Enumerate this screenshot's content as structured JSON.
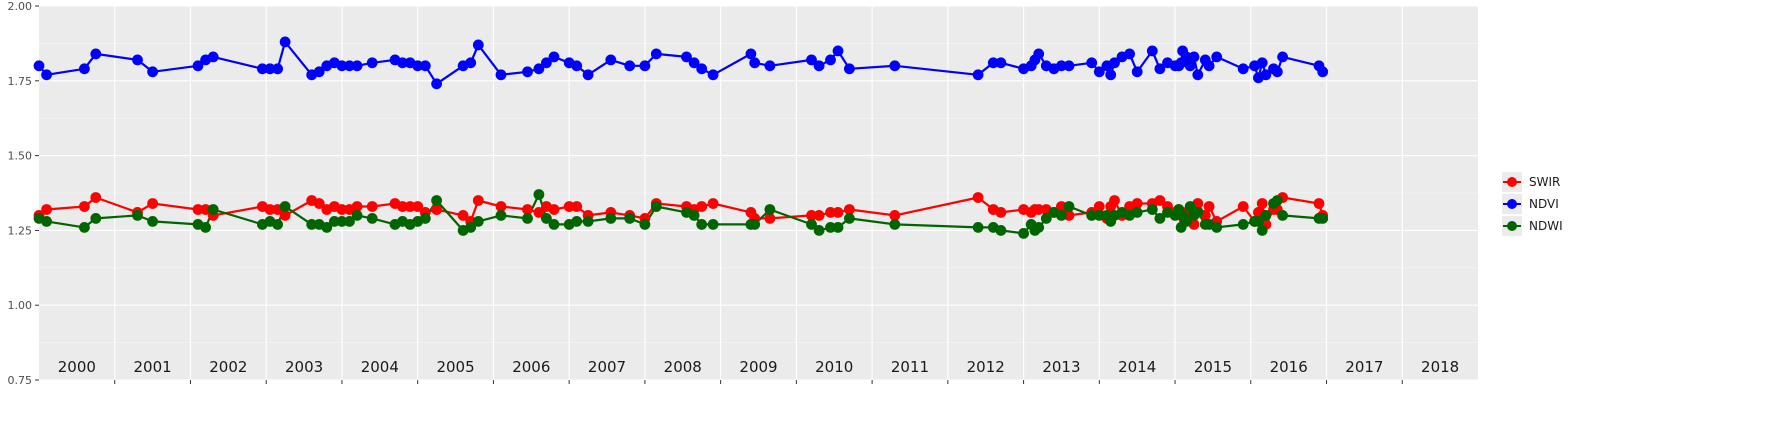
{
  "chart_data": {
    "type": "line",
    "title": "",
    "xlabel": "",
    "ylabel": "",
    "xlim": [
      2000.0,
      2019.0
    ],
    "ylim": [
      0.75,
      2.0
    ],
    "yticks": [
      "0.75",
      "1.00",
      "1.25",
      "1.50",
      "1.75",
      "2.00"
    ],
    "year_labels": [
      "2000",
      "2001",
      "2002",
      "2003",
      "2004",
      "2005",
      "2006",
      "2007",
      "2008",
      "2009",
      "2010",
      "2011",
      "2012",
      "2013",
      "2014",
      "2015",
      "2016",
      "2017",
      "2018"
    ],
    "grid": true,
    "legend_position": "right",
    "series": [
      {
        "name": "SWIR",
        "color": "#ff0000",
        "x": [
          2000.0,
          2000.1,
          2000.6,
          2000.75,
          2001.3,
          2001.5,
          2002.1,
          2002.2,
          2002.3,
          2002.95,
          2003.05,
          2003.15,
          2003.25,
          2003.6,
          2003.7,
          2003.8,
          2003.9,
          2004.0,
          2004.1,
          2004.2,
          2004.4,
          2004.7,
          2004.8,
          2004.9,
          2005.0,
          2005.1,
          2005.25,
          2005.6,
          2005.7,
          2005.8,
          2006.1,
          2006.45,
          2006.6,
          2006.7,
          2006.8,
          2007.0,
          2007.1,
          2007.25,
          2007.55,
          2007.8,
          2008.0,
          2008.15,
          2008.55,
          2008.65,
          2008.75,
          2008.9,
          2009.4,
          2009.45,
          2009.65,
          2010.2,
          2010.3,
          2010.45,
          2010.55,
          2010.7,
          2011.3,
          2012.4,
          2012.6,
          2012.7,
          2013.0,
          2013.1,
          2013.15,
          2013.2,
          2013.3,
          2013.4,
          2013.5,
          2013.6,
          2013.9,
          2014.0,
          2014.1,
          2014.15,
          2014.2,
          2014.3,
          2014.4,
          2014.5,
          2014.7,
          2014.8,
          2014.9,
          2015.0,
          2015.05,
          2015.08,
          2015.1,
          2015.15,
          2015.2,
          2015.25,
          2015.3,
          2015.4,
          2015.45,
          2015.55,
          2015.9,
          2016.05,
          2016.1,
          2016.15,
          2016.2,
          2016.3,
          2016.35,
          2016.42,
          2016.9,
          2016.95
        ],
        "values": [
          1.3,
          1.32,
          1.33,
          1.36,
          1.31,
          1.34,
          1.32,
          1.32,
          1.3,
          1.33,
          1.32,
          1.32,
          1.3,
          1.35,
          1.34,
          1.32,
          1.33,
          1.32,
          1.32,
          1.33,
          1.33,
          1.34,
          1.33,
          1.33,
          1.33,
          1.31,
          1.32,
          1.3,
          1.28,
          1.35,
          1.33,
          1.32,
          1.31,
          1.33,
          1.32,
          1.33,
          1.33,
          1.3,
          1.31,
          1.3,
          1.29,
          1.34,
          1.33,
          1.32,
          1.33,
          1.34,
          1.31,
          1.29,
          1.29,
          1.3,
          1.3,
          1.31,
          1.31,
          1.32,
          1.3,
          1.36,
          1.32,
          1.31,
          1.32,
          1.31,
          1.32,
          1.32,
          1.32,
          1.31,
          1.33,
          1.3,
          1.31,
          1.33,
          1.29,
          1.33,
          1.35,
          1.3,
          1.33,
          1.34,
          1.34,
          1.35,
          1.33,
          1.31,
          1.32,
          1.3,
          1.31,
          1.29,
          1.29,
          1.27,
          1.34,
          1.3,
          1.33,
          1.28,
          1.33,
          1.28,
          1.31,
          1.34,
          1.27,
          1.32,
          1.32,
          1.36,
          1.34,
          1.3
        ]
      },
      {
        "name": "NDVI",
        "color": "#0000ff",
        "x": [
          2000.0,
          2000.1,
          2000.6,
          2000.75,
          2001.3,
          2001.5,
          2002.1,
          2002.2,
          2002.3,
          2002.95,
          2003.05,
          2003.15,
          2003.25,
          2003.6,
          2003.7,
          2003.8,
          2003.9,
          2004.0,
          2004.1,
          2004.2,
          2004.4,
          2004.7,
          2004.8,
          2004.9,
          2005.0,
          2005.1,
          2005.25,
          2005.6,
          2005.7,
          2005.8,
          2006.1,
          2006.45,
          2006.6,
          2006.7,
          2006.8,
          2007.0,
          2007.1,
          2007.25,
          2007.55,
          2007.8,
          2008.0,
          2008.15,
          2008.55,
          2008.65,
          2008.75,
          2008.9,
          2009.4,
          2009.45,
          2009.65,
          2010.2,
          2010.3,
          2010.45,
          2010.55,
          2010.7,
          2011.3,
          2012.4,
          2012.6,
          2012.7,
          2013.0,
          2013.1,
          2013.15,
          2013.2,
          2013.3,
          2013.4,
          2013.5,
          2013.6,
          2013.9,
          2014.0,
          2014.1,
          2014.15,
          2014.2,
          2014.3,
          2014.4,
          2014.5,
          2014.7,
          2014.8,
          2014.9,
          2015.0,
          2015.05,
          2015.08,
          2015.1,
          2015.15,
          2015.2,
          2015.25,
          2015.3,
          2015.4,
          2015.45,
          2015.55,
          2015.9,
          2016.05,
          2016.1,
          2016.15,
          2016.2,
          2016.3,
          2016.35,
          2016.42,
          2016.9,
          2016.95
        ],
        "values": [
          1.8,
          1.77,
          1.79,
          1.84,
          1.82,
          1.78,
          1.8,
          1.82,
          1.83,
          1.79,
          1.79,
          1.79,
          1.88,
          1.77,
          1.78,
          1.8,
          1.81,
          1.8,
          1.8,
          1.8,
          1.81,
          1.82,
          1.81,
          1.81,
          1.8,
          1.8,
          1.74,
          1.8,
          1.81,
          1.87,
          1.77,
          1.78,
          1.79,
          1.81,
          1.83,
          1.81,
          1.8,
          1.77,
          1.82,
          1.8,
          1.8,
          1.84,
          1.83,
          1.81,
          1.79,
          1.77,
          1.84,
          1.81,
          1.8,
          1.82,
          1.8,
          1.82,
          1.85,
          1.79,
          1.8,
          1.77,
          1.81,
          1.81,
          1.79,
          1.8,
          1.82,
          1.84,
          1.8,
          1.79,
          1.8,
          1.8,
          1.81,
          1.78,
          1.8,
          1.77,
          1.81,
          1.83,
          1.84,
          1.78,
          1.85,
          1.79,
          1.81,
          1.8,
          1.8,
          1.81,
          1.85,
          1.83,
          1.8,
          1.83,
          1.77,
          1.82,
          1.8,
          1.83,
          1.79,
          1.8,
          1.76,
          1.81,
          1.77,
          1.79,
          1.78,
          1.83,
          1.8,
          1.78
        ]
      },
      {
        "name": "NDWI",
        "color": "#006400",
        "x": [
          2000.0,
          2000.1,
          2000.6,
          2000.75,
          2001.3,
          2001.5,
          2002.1,
          2002.2,
          2002.3,
          2002.95,
          2003.05,
          2003.15,
          2003.25,
          2003.6,
          2003.7,
          2003.8,
          2003.9,
          2004.0,
          2004.1,
          2004.2,
          2004.4,
          2004.7,
          2004.8,
          2004.9,
          2005.0,
          2005.1,
          2005.25,
          2005.6,
          2005.7,
          2005.8,
          2006.1,
          2006.45,
          2006.6,
          2006.7,
          2006.8,
          2007.0,
          2007.1,
          2007.25,
          2007.55,
          2007.8,
          2008.0,
          2008.15,
          2008.55,
          2008.65,
          2008.75,
          2008.9,
          2009.4,
          2009.45,
          2009.65,
          2010.2,
          2010.3,
          2010.45,
          2010.55,
          2010.7,
          2011.3,
          2012.4,
          2012.6,
          2012.7,
          2013.0,
          2013.1,
          2013.15,
          2013.2,
          2013.3,
          2013.4,
          2013.5,
          2013.6,
          2013.9,
          2014.0,
          2014.1,
          2014.15,
          2014.2,
          2014.3,
          2014.4,
          2014.5,
          2014.7,
          2014.8,
          2014.9,
          2015.0,
          2015.05,
          2015.08,
          2015.1,
          2015.15,
          2015.2,
          2015.25,
          2015.3,
          2015.4,
          2015.45,
          2015.55,
          2015.9,
          2016.05,
          2016.1,
          2016.15,
          2016.2,
          2016.3,
          2016.35,
          2016.42,
          2016.9,
          2016.95
        ],
        "values": [
          1.29,
          1.28,
          1.26,
          1.29,
          1.3,
          1.28,
          1.27,
          1.26,
          1.32,
          1.27,
          1.28,
          1.27,
          1.33,
          1.27,
          1.27,
          1.26,
          1.28,
          1.28,
          1.28,
          1.3,
          1.29,
          1.27,
          1.28,
          1.27,
          1.28,
          1.29,
          1.35,
          1.25,
          1.26,
          1.28,
          1.3,
          1.29,
          1.37,
          1.29,
          1.27,
          1.27,
          1.28,
          1.28,
          1.29,
          1.29,
          1.27,
          1.33,
          1.31,
          1.3,
          1.27,
          1.27,
          1.27,
          1.27,
          1.32,
          1.27,
          1.25,
          1.26,
          1.26,
          1.29,
          1.27,
          1.26,
          1.26,
          1.25,
          1.24,
          1.27,
          1.25,
          1.26,
          1.29,
          1.31,
          1.3,
          1.33,
          1.3,
          1.3,
          1.3,
          1.28,
          1.3,
          1.31,
          1.3,
          1.31,
          1.32,
          1.29,
          1.31,
          1.3,
          1.32,
          1.26,
          1.3,
          1.28,
          1.33,
          1.3,
          1.31,
          1.27,
          1.27,
          1.26,
          1.27,
          1.28,
          1.28,
          1.25,
          1.3,
          1.34,
          1.35,
          1.3,
          1.29,
          1.29
        ]
      }
    ]
  }
}
